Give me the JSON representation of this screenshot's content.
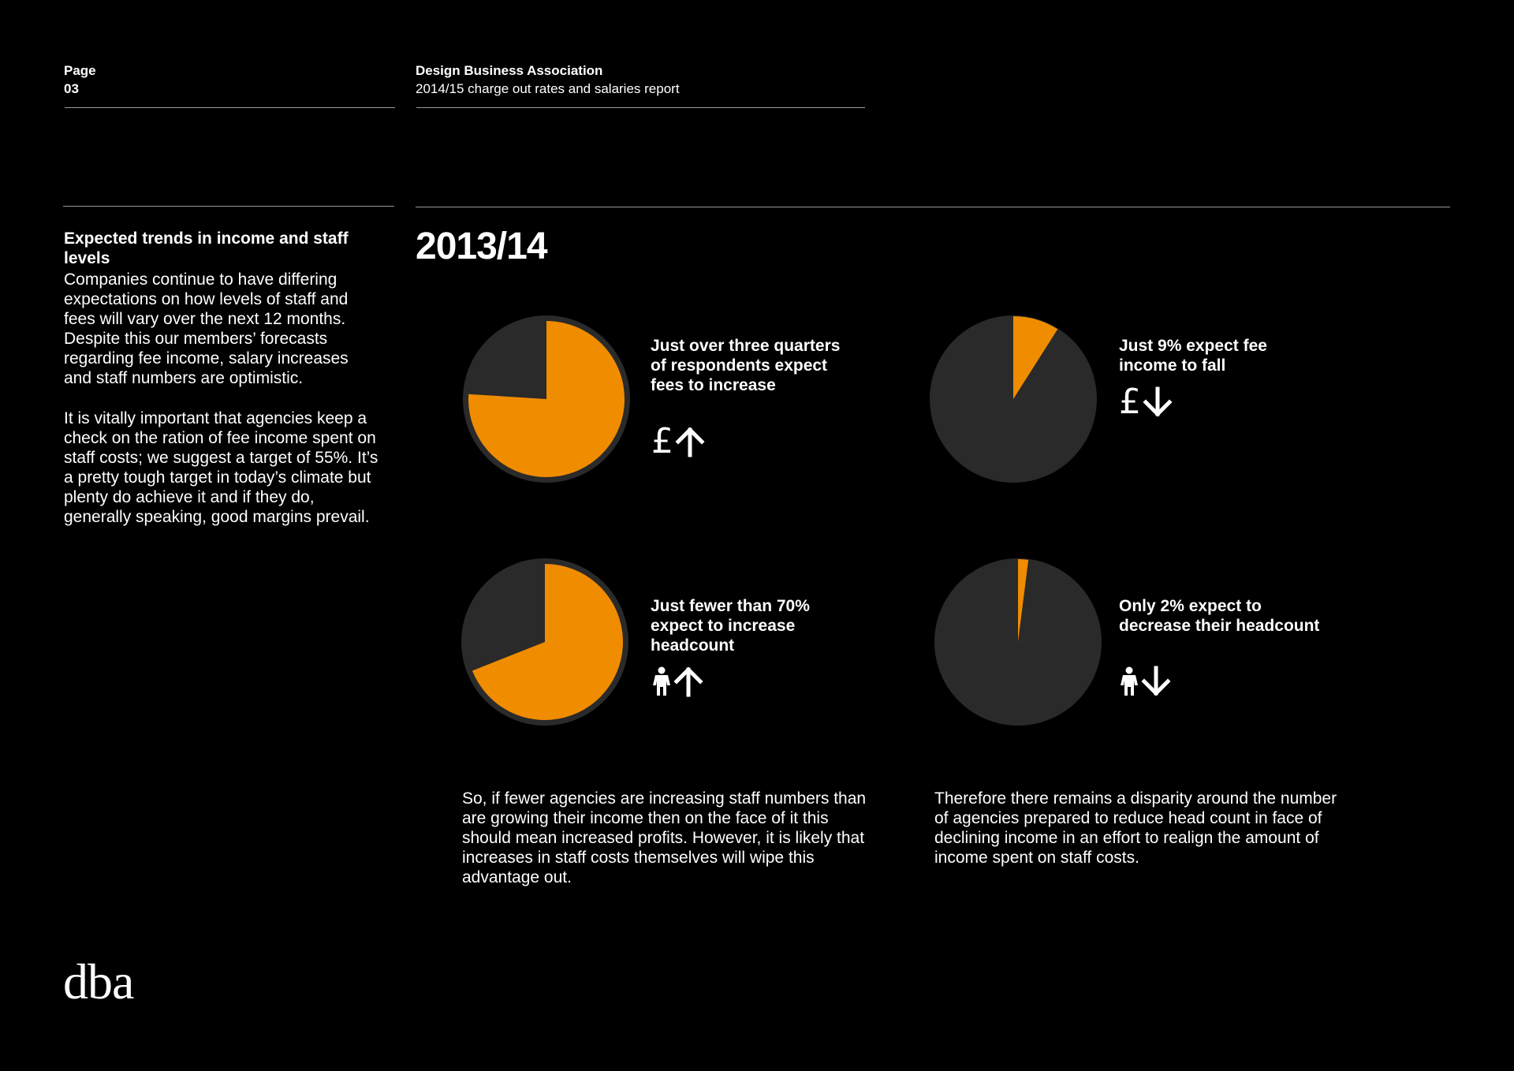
{
  "header": {
    "page_label": "Page",
    "page_number": "03",
    "org_name": "Design Business Association",
    "report_title": "2014/15 charge out rates and salaries report"
  },
  "intro": {
    "title": "Expected trends in income and staff levels",
    "paragraph1": "Companies continue to have differing expectations on how levels of staff and fees will vary over the next 12 months. Despite this our members’ forecasts regarding fee income, salary increases and staff numbers are optimistic.",
    "paragraph2": "It is vitally important that agencies keep a check on the ration of fee income spent on staff costs; we suggest a target of 55%. It’s a pretty tough target in today’s climate but plenty do achieve it and if they do, generally speaking, good margins prevail."
  },
  "year_heading": "2013/14",
  "stats": [
    {
      "caption": "Just over three quarters of respondents expect fees to increase",
      "icon_subject": "pound-icon",
      "icon_subject_glyph": "£",
      "icon_direction": "arrow-up-icon"
    },
    {
      "caption": "Just 9% expect fee income to fall",
      "icon_subject": "pound-icon",
      "icon_subject_glyph": "£",
      "icon_direction": "arrow-down-icon"
    },
    {
      "caption": "Just fewer than 70% expect to increase headcount",
      "icon_subject": "person-icon",
      "icon_direction": "arrow-up-icon"
    },
    {
      "caption": "Only 2% expect to decrease their headcount",
      "icon_subject": "person-icon",
      "icon_direction": "arrow-down-icon"
    }
  ],
  "footnotes": {
    "left": "So, if fewer agencies are increasing staff numbers than are growing their income then on the face of it this should mean increased profits. However, it is likely that increases in staff costs themselves will wipe this advantage out.",
    "right": "Therefore there remains a disparity around the number of agencies prepared to reduce head count in face of declining income in an effort to realign the amount of income spent on staff costs."
  },
  "logo_text": "dba",
  "colors": {
    "background": "#000000",
    "pie_highlight": "#f08c00",
    "pie_remainder": "#2a2a2a",
    "text": "#ffffff",
    "rule": "#9a9a9a"
  },
  "chart_data": [
    {
      "type": "pie",
      "values": [
        76,
        24
      ]
    },
    {
      "type": "pie",
      "values": [
        9,
        91
      ]
    },
    {
      "type": "pie",
      "values": [
        69,
        31
      ]
    },
    {
      "type": "pie",
      "values": [
        2,
        98
      ]
    }
  ]
}
